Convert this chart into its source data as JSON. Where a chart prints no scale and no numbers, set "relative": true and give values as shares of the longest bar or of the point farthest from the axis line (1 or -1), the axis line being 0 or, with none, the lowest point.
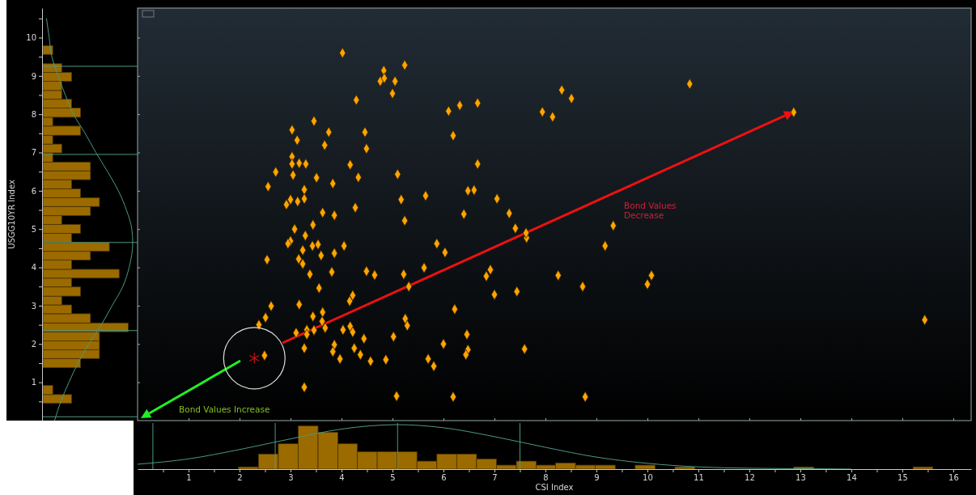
{
  "chart_data": [
    {
      "type": "scatter",
      "xlim": [
        0,
        16.35
      ],
      "ylim": [
        0,
        10.77
      ],
      "tick_labels": false,
      "marker": "diamond",
      "series": [
        {
          "color": "#ffa500",
          "x": [
            4.02,
            4.83,
            5.24,
            4.76,
            4.84,
            5.05,
            5.0,
            4.29,
            3.46,
            3.03,
            3.75,
            4.46,
            3.13,
            3.67,
            4.49,
            3.03,
            3.03,
            3.17,
            3.3,
            4.17,
            2.71,
            3.05,
            5.1,
            3.51,
            4.33,
            3.83,
            2.56,
            3.27,
            3.0,
            3.27,
            2.92,
            3.14,
            5.17,
            5.65,
            3.63,
            4.27,
            3.86,
            5.24,
            3.08,
            3.44,
            3.29,
            3.0,
            2.95,
            3.24,
            3.43,
            3.54,
            4.05,
            2.54,
            3.16,
            3.6,
            3.86,
            3.24,
            3.38,
            3.81,
            4.49,
            4.65,
            5.22,
            5.62,
            5.87,
            3.56,
            4.22,
            4.16,
            5.32,
            2.62,
            3.17,
            2.51,
            2.38,
            3.44,
            3.63,
            3.62,
            3.68,
            5.25,
            5.29,
            3.11,
            3.32,
            3.32,
            3.46,
            4.03,
            4.17,
            4.22,
            4.44,
            5.02,
            3.86,
            3.27,
            3.83,
            4.25,
            4.37,
            3.97,
            4.57,
            4.87,
            5.7,
            5.81,
            2.49,
            3.27,
            5.08,
            6.1,
            6.32,
            6.67,
            8.32,
            8.51,
            7.94,
            8.14,
            10.83,
            6.19,
            6.67,
            6.48,
            6.6,
            7.05,
            6.4,
            7.29,
            7.41,
            7.63,
            7.62,
            9.33,
            9.17,
            6.03,
            6.92,
            6.84,
            8.25,
            8.73,
            7.0,
            7.44,
            10.08,
            10.0,
            6.22,
            6.46,
            6.0,
            6.48,
            6.44,
            7.59,
            6.19,
            8.78,
            12.87,
            15.44
          ],
          "values": [
            9.6,
            9.14,
            9.28,
            8.86,
            8.94,
            8.86,
            8.54,
            8.37,
            7.82,
            7.59,
            7.53,
            7.53,
            7.32,
            7.19,
            7.1,
            6.89,
            6.7,
            6.72,
            6.7,
            6.68,
            6.49,
            6.41,
            6.43,
            6.34,
            6.35,
            6.19,
            6.11,
            6.03,
            5.77,
            5.79,
            5.64,
            5.72,
            5.77,
            5.87,
            5.43,
            5.56,
            5.36,
            5.22,
            5.0,
            5.11,
            4.83,
            4.69,
            4.62,
            4.45,
            4.56,
            4.6,
            4.56,
            4.2,
            4.22,
            4.31,
            4.37,
            4.09,
            3.82,
            3.88,
            3.9,
            3.8,
            3.82,
            3.99,
            4.62,
            3.46,
            3.27,
            3.12,
            3.5,
            2.99,
            3.03,
            2.69,
            2.5,
            2.72,
            2.83,
            2.59,
            2.42,
            2.66,
            2.48,
            2.29,
            2.37,
            2.25,
            2.36,
            2.37,
            2.46,
            2.31,
            2.14,
            2.19,
            1.98,
            1.89,
            1.8,
            1.89,
            1.72,
            1.61,
            1.55,
            1.59,
            1.61,
            1.42,
            1.7,
            0.87,
            0.64,
            8.08,
            8.23,
            8.29,
            8.63,
            8.41,
            8.06,
            7.93,
            8.79,
            7.44,
            6.7,
            6.0,
            6.02,
            5.79,
            5.39,
            5.41,
            5.02,
            4.77,
            4.9,
            5.09,
            4.56,
            4.39,
            3.94,
            3.77,
            3.79,
            3.5,
            3.29,
            3.37,
            3.79,
            3.56,
            2.91,
            2.25,
            2.0,
            1.85,
            1.72,
            1.87,
            0.62,
            0.62,
            8.05,
            2.63
          ]
        },
        {
          "color": "#cc1111",
          "marker": "cross",
          "x": [
            2.29
          ],
          "values": [
            1.63
          ]
        }
      ],
      "xticks": [
        1,
        2,
        3,
        4,
        5,
        6,
        7,
        8,
        9,
        10,
        11,
        12,
        13,
        14,
        15,
        16
      ],
      "yticks": [
        1,
        2,
        3,
        4,
        5,
        6,
        7,
        8,
        9,
        10
      ],
      "annotations": [
        "Bond Values Decrease",
        "Bond Values Increase"
      ]
    },
    {
      "type": "histogram",
      "orientation": "horizontal",
      "relative": true,
      "color": "#9b6b00",
      "ylabel": "USGG10YR Index",
      "ylim": [
        0,
        10.77
      ],
      "yticks": [
        {
          "value": 0.5,
          "label": null
        },
        1,
        {
          "value": 1.5,
          "label": null
        },
        2,
        {
          "value": 2.5,
          "label": null
        },
        3,
        {
          "value": 3.5,
          "label": null
        },
        4,
        {
          "value": 4.5,
          "label": null
        },
        5,
        {
          "value": 5.5,
          "label": null
        },
        6,
        {
          "value": 6.5,
          "label": null
        },
        7,
        {
          "value": 7.5,
          "label": null
        },
        8,
        {
          "value": 8.5,
          "label": null
        },
        9,
        {
          "value": 9.5,
          "label": null
        },
        10,
        {
          "value": 10.5,
          "label": null
        }
      ],
      "bins": [
        0.45,
        0.68,
        0.92,
        1.15,
        1.38,
        1.62,
        1.85,
        2.08,
        2.32,
        2.55,
        2.79,
        3.02,
        3.25,
        3.49,
        3.72,
        3.95,
        4.19,
        4.42,
        4.65,
        4.89,
        5.12,
        5.35,
        5.59,
        5.82,
        6.05,
        6.29,
        6.52,
        6.75,
        6.99,
        7.22,
        7.45,
        7.69,
        7.92,
        8.16,
        8.39,
        8.62,
        8.86,
        9.09,
        9.32,
        9.56,
        9.79
      ],
      "values": [
        0.32,
        0.11,
        0,
        0,
        0.42,
        0.63,
        0.63,
        0.63,
        0.95,
        0.53,
        0.32,
        0.21,
        0.42,
        0.32,
        0.85,
        0.32,
        0.53,
        0.74,
        0.32,
        0.42,
        0.21,
        0.53,
        0.63,
        0.42,
        0.32,
        0.53,
        0.53,
        0.11,
        0.21,
        0.11,
        0.42,
        0.11,
        0.42,
        0.32,
        0.21,
        0.21,
        0.32,
        0.21,
        0,
        0.11
      ],
      "series": [
        {
          "type": "line",
          "color": "#4a9a80",
          "x": [
            0,
            0.5,
            1,
            1.5,
            2,
            2.5,
            3,
            3.5,
            4,
            4.65,
            5,
            5.5,
            6,
            6.5,
            7,
            7.5,
            8,
            8.5,
            9,
            9.5,
            10,
            10.5
          ],
          "values": [
            0.13,
            0.2,
            0.29,
            0.39,
            0.51,
            0.65,
            0.77,
            0.89,
            0.96,
            1,
            0.99,
            0.93,
            0.84,
            0.72,
            0.59,
            0.47,
            0.34,
            0.25,
            0.17,
            0.1,
            0.07,
            0.04
          ]
        }
      ],
      "ref_lines": [
        {
          "axis": "y",
          "value": 0.1,
          "color": "#4a9a80"
        },
        {
          "axis": "y",
          "value": 2.35,
          "color": "#4a9a80"
        },
        {
          "axis": "y",
          "value": 4.65,
          "color": "#4a9a80"
        },
        {
          "axis": "y",
          "value": 6.95,
          "color": "#4a9a80"
        },
        {
          "axis": "y",
          "value": 9.25,
          "color": "#4a9a80"
        }
      ]
    },
    {
      "type": "histogram",
      "relative": true,
      "color": "#9b6b00",
      "xlabel": "CSI Index",
      "xlim": [
        0,
        16.35
      ],
      "xticks": [
        {
          "value": 0.5,
          "label": null
        },
        1,
        {
          "value": 1.5,
          "label": null
        },
        2,
        {
          "value": 2.5,
          "label": null
        },
        3,
        {
          "value": 3.5,
          "label": null
        },
        4,
        {
          "value": 4.5,
          "label": null
        },
        5,
        {
          "value": 5.5,
          "label": null
        },
        6,
        {
          "value": 6.5,
          "label": null
        },
        7,
        {
          "value": 7.5,
          "label": null
        },
        8,
        {
          "value": 8.5,
          "label": null
        },
        9,
        {
          "value": 9.5,
          "label": null
        },
        10,
        {
          "value": 10.5,
          "label": null
        },
        11,
        {
          "value": 11.5,
          "label": null
        },
        12,
        {
          "value": 12.5,
          "label": null
        },
        13,
        {
          "value": 13.5,
          "label": null
        },
        14,
        {
          "value": 14.5,
          "label": null
        },
        15,
        {
          "value": 15.5,
          "label": null
        },
        16
      ],
      "bins": [
        1.98,
        2.37,
        2.76,
        3.15,
        3.54,
        3.93,
        4.31,
        4.7,
        5.09,
        5.48,
        5.87,
        6.26,
        6.65,
        7.04,
        7.43,
        7.82,
        8.2,
        8.59,
        8.98,
        9.37,
        9.76,
        10.15,
        10.54,
        10.93,
        12.87,
        13.26,
        15.21,
        15.6
      ],
      "values": [
        0.05,
        0.34,
        0.57,
        0.97,
        0.83,
        0.57,
        0.39,
        0.39,
        0.39,
        0.18,
        0.34,
        0.34,
        0.23,
        0.09,
        0.18,
        0.09,
        0.14,
        0.09,
        0.09,
        0,
        0.09,
        0,
        0.05,
        0,
        0.05,
        0,
        0.05
      ],
      "series": [
        {
          "type": "line",
          "color": "#4a9a80",
          "x": [
            0,
            1,
            2,
            3,
            4,
            5.1,
            6,
            7,
            8,
            9,
            10,
            11,
            12,
            13,
            14
          ],
          "values": [
            0.11,
            0.23,
            0.44,
            0.68,
            0.9,
            1,
            0.93,
            0.73,
            0.49,
            0.27,
            0.13,
            0.05,
            0.02,
            0.01,
            0
          ]
        }
      ],
      "ref_lines": [
        {
          "axis": "x",
          "value": 0.3,
          "color": "#4a9a80"
        },
        {
          "axis": "x",
          "value": 2.7,
          "color": "#4a9a80"
        },
        {
          "axis": "x",
          "value": 5.1,
          "color": "#4a9a80"
        },
        {
          "axis": "x",
          "value": 7.5,
          "color": "#4a9a80"
        }
      ]
    }
  ]
}
